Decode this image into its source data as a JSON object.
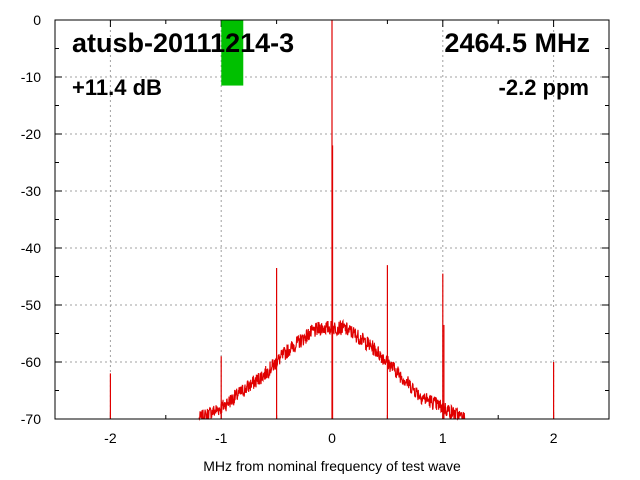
{
  "chart_data": {
    "type": "line",
    "xlabel": "MHz from nominal frequency of test wave",
    "ylabel": "",
    "xlim": [
      -2.5,
      2.5
    ],
    "ylim": [
      -70,
      0
    ],
    "xticks": [
      -2,
      -1,
      0,
      1,
      2
    ],
    "yticks": [
      0,
      -10,
      -20,
      -30,
      -40,
      -50,
      -60,
      -70
    ],
    "grid": true,
    "series_color": "#e00000",
    "noise_floor": {
      "x": [
        -1.2,
        -1.0,
        -0.8,
        -0.6,
        -0.4,
        -0.2,
        -0.1,
        0.0,
        0.1,
        0.2,
        0.4,
        0.6,
        0.8,
        1.0,
        1.2
      ],
      "y": [
        -70,
        -68,
        -65,
        -62,
        -58,
        -55,
        -54,
        -54,
        -54,
        -55,
        -58,
        -62,
        -66,
        -68,
        -70
      ]
    },
    "spurs": [
      {
        "x": -2.0,
        "y": -62
      },
      {
        "x": -1.0,
        "y": -59
      },
      {
        "x": -0.5,
        "y": -43.5
      },
      {
        "x": 0.0,
        "y": 0
      },
      {
        "x": 0.005,
        "y": -22
      },
      {
        "x": 0.5,
        "y": -43
      },
      {
        "x": 1.0,
        "y": -44.5
      },
      {
        "x": 1.01,
        "y": -53.5
      },
      {
        "x": 2.0,
        "y": -60
      }
    ],
    "marker": {
      "x": -0.9,
      "from": 0,
      "to": -11.5,
      "color": "#00c000"
    }
  },
  "annotations": {
    "device": "atusb-20111214-3",
    "frequency": "2464.5 MHz",
    "gain": "+11.4 dB",
    "ppm": "-2.2 ppm"
  }
}
